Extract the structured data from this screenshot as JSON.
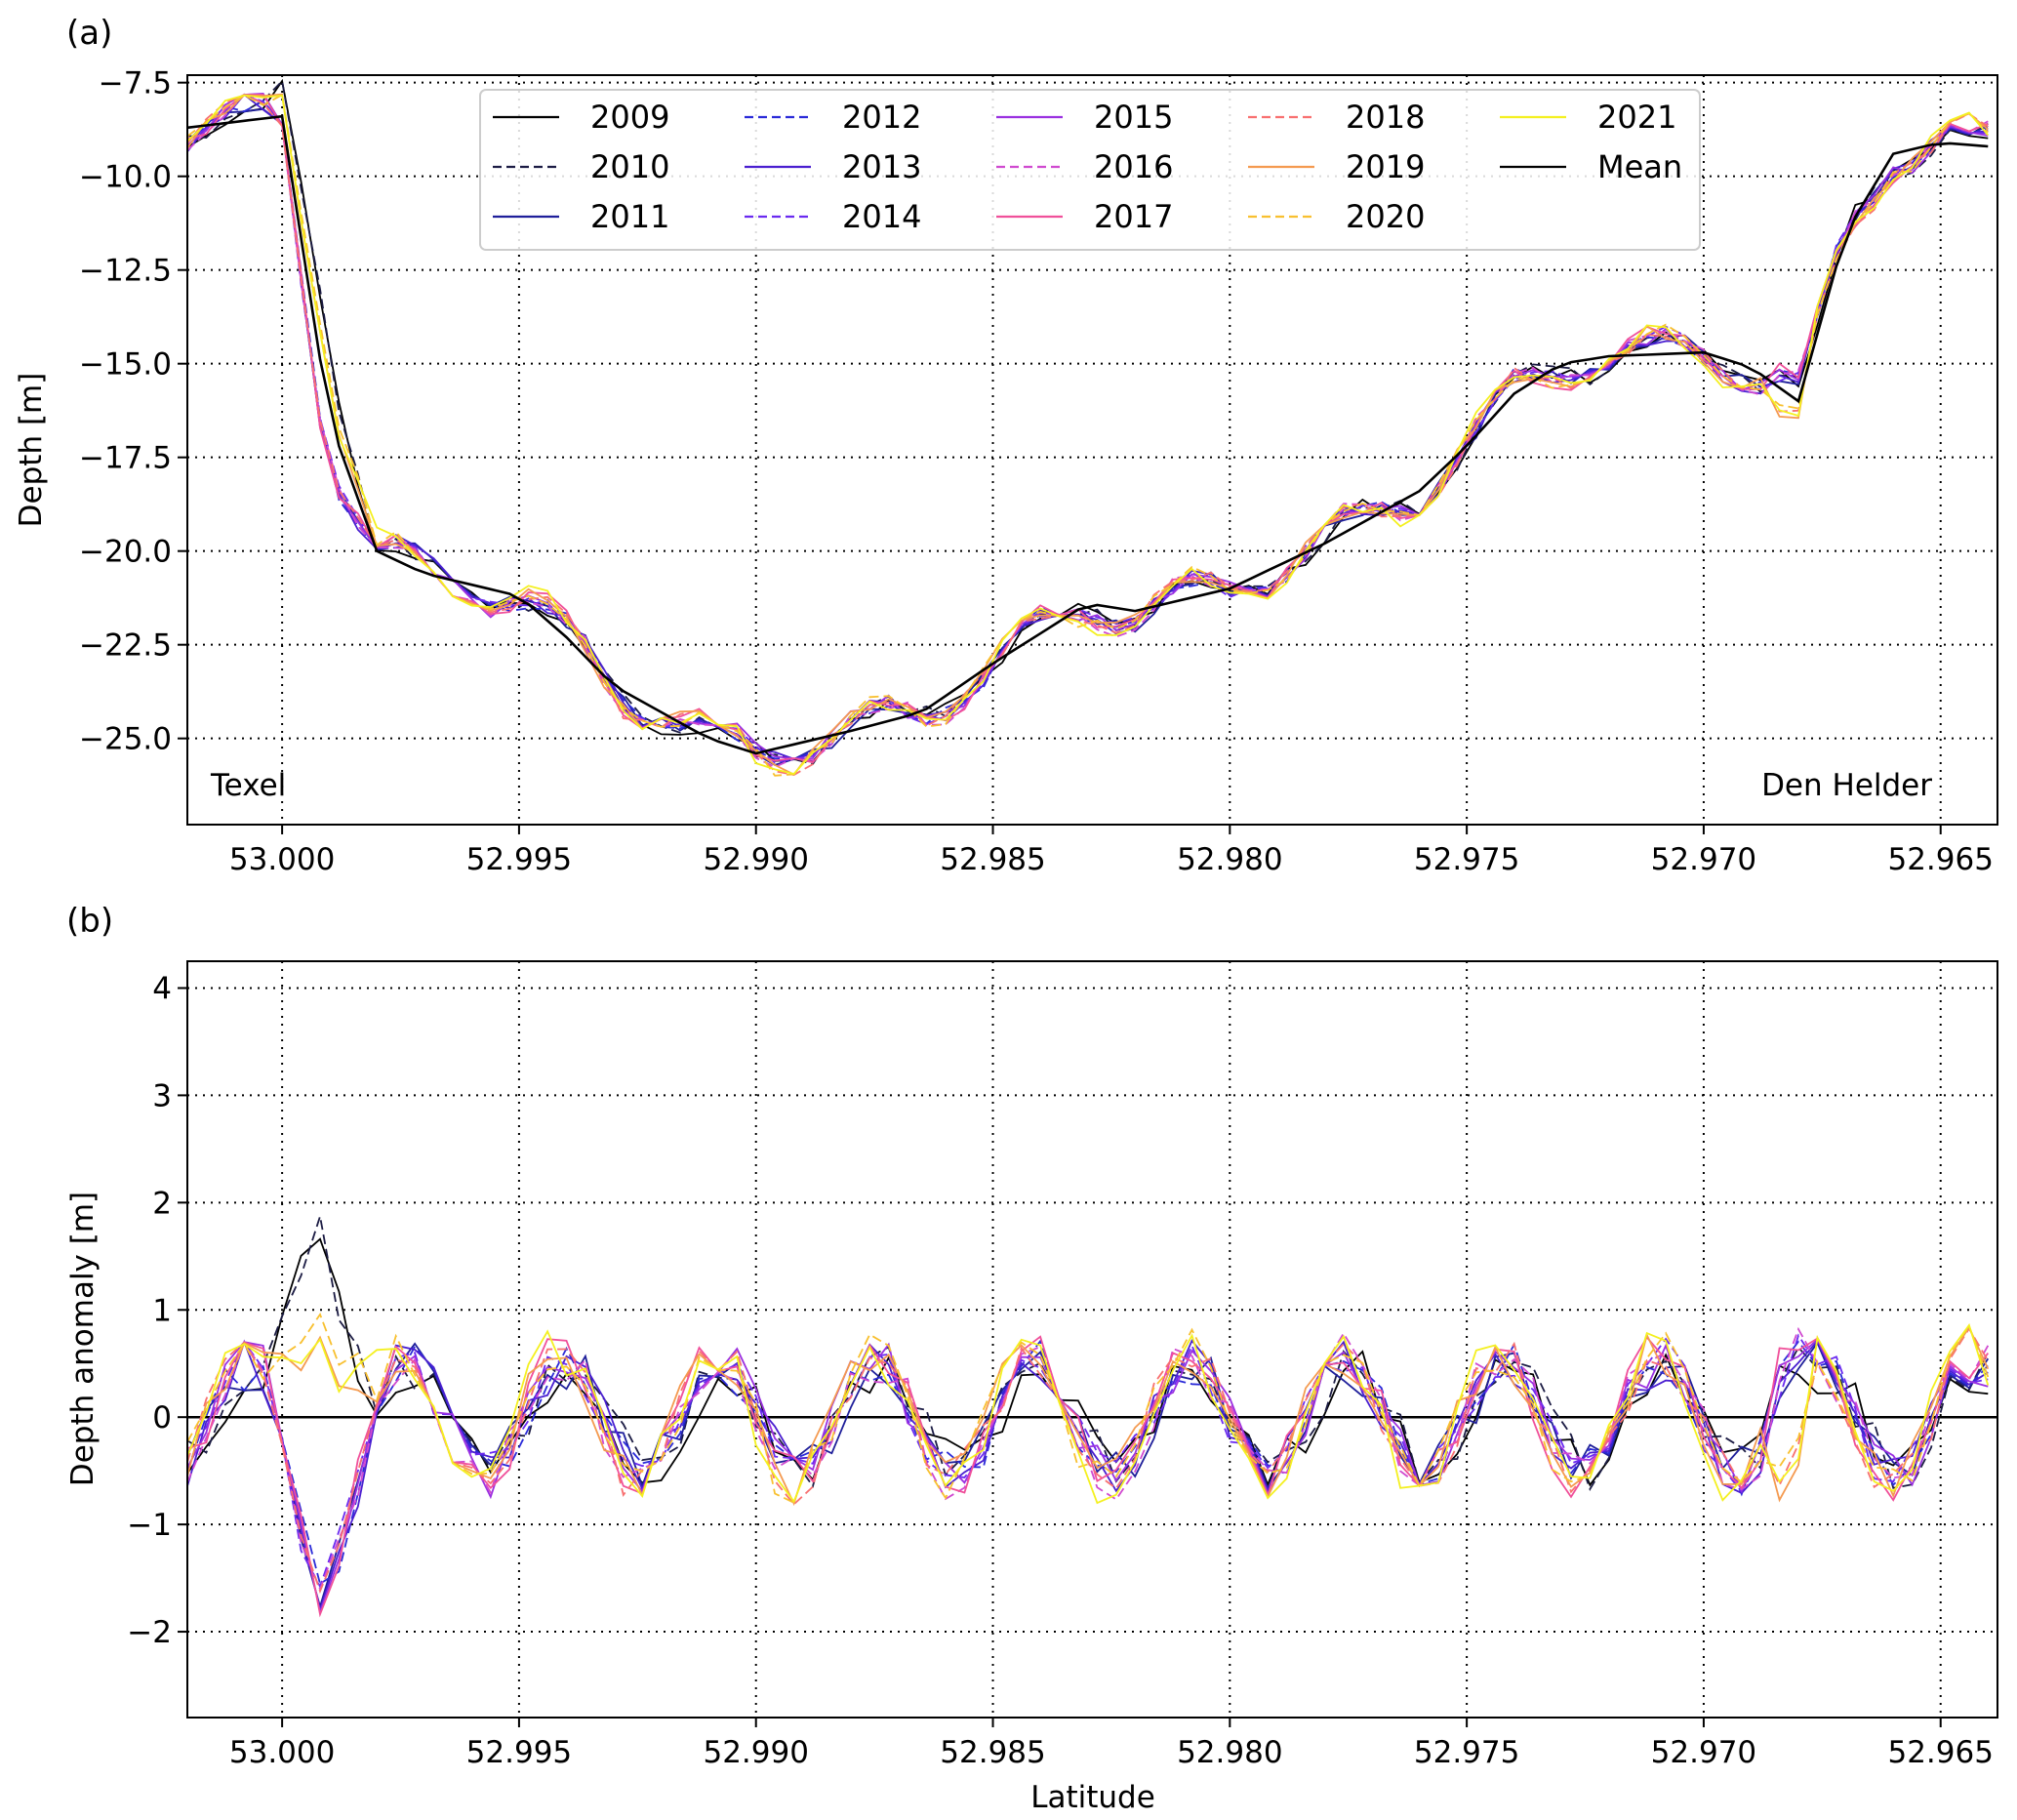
{
  "chart_data": [
    {
      "panel_label": "(a)",
      "type": "line",
      "xlabel": "",
      "ylabel": "Depth [m]",
      "xlim": [
        53.002,
        52.9638
      ],
      "ylim": [
        -27.3,
        -7.3
      ],
      "x_ticks": [
        "53.000",
        "52.995",
        "52.990",
        "52.985",
        "52.980",
        "52.975",
        "52.970",
        "52.965"
      ],
      "x_tick_values": [
        53.0,
        52.995,
        52.99,
        52.985,
        52.98,
        52.975,
        52.97,
        52.965
      ],
      "y_ticks": [
        "−7.5",
        "−10.0",
        "−12.5",
        "−15.0",
        "−17.5",
        "−20.0",
        "−22.5",
        "−25.0"
      ],
      "y_tick_values": [
        -7.5,
        -10.0,
        -12.5,
        -15.0,
        -17.5,
        -20.0,
        -22.5,
        -25.0
      ],
      "grid": true,
      "grid_style": "dotted",
      "legend_placement": "top-center",
      "annotations": [
        {
          "text": "Texel",
          "position": "bottom-left"
        },
        {
          "text": "Den Helder",
          "position": "bottom-right"
        }
      ],
      "mean_profile": {
        "x": [
          53.002,
          53.0,
          52.999,
          52.998,
          52.997,
          52.996,
          52.995,
          52.994,
          52.993,
          52.992,
          52.991,
          52.99,
          52.989,
          52.988,
          52.9865,
          52.985,
          52.984,
          52.983,
          52.982,
          52.98,
          52.978,
          52.976,
          52.975,
          52.974,
          52.973,
          52.972,
          52.97,
          52.969,
          52.968,
          52.967,
          52.966,
          52.965,
          52.964
        ],
        "y": [
          -8.7,
          -8.4,
          -16.5,
          -20.0,
          -20.6,
          -20.9,
          -21.2,
          -22.3,
          -23.6,
          -24.3,
          -25.0,
          -25.4,
          -25.1,
          -24.8,
          -24.3,
          -23.0,
          -22.2,
          -21.4,
          -21.6,
          -21.0,
          -19.8,
          -18.4,
          -17.2,
          -15.8,
          -15.0,
          -14.8,
          -14.7,
          -15.1,
          -16.0,
          -11.5,
          -9.4,
          -9.1,
          -9.2
        ]
      },
      "series": [
        {
          "name": "2009",
          "color": "#000000",
          "dash": "solid"
        },
        {
          "name": "2010",
          "color": "#1c1c44",
          "dash": "dashed"
        },
        {
          "name": "2011",
          "color": "#1f1f9a",
          "dash": "solid"
        },
        {
          "name": "2012",
          "color": "#2a2ad8",
          "dash": "dashed"
        },
        {
          "name": "2013",
          "color": "#4a1fd0",
          "dash": "solid"
        },
        {
          "name": "2014",
          "color": "#6a2af0",
          "dash": "dashed"
        },
        {
          "name": "2015",
          "color": "#9a30e0",
          "dash": "solid"
        },
        {
          "name": "2016",
          "color": "#d04ad0",
          "dash": "dashed"
        },
        {
          "name": "2017",
          "color": "#f0509a",
          "dash": "solid"
        },
        {
          "name": "2018",
          "color": "#f87070",
          "dash": "dashed"
        },
        {
          "name": "2019",
          "color": "#f49a50",
          "dash": "solid"
        },
        {
          "name": "2020",
          "color": "#f8c030",
          "dash": "dashed"
        },
        {
          "name": "2021",
          "color": "#f4f020",
          "dash": "solid"
        },
        {
          "name": "Mean",
          "color": "#000000",
          "dash": "solid"
        }
      ]
    },
    {
      "panel_label": "(b)",
      "type": "line",
      "xlabel": "Latitude",
      "ylabel": "Depth anomaly [m]",
      "xlim": [
        53.002,
        52.9638
      ],
      "ylim": [
        -2.8,
        4.25
      ],
      "x_ticks": [
        "53.000",
        "52.995",
        "52.990",
        "52.985",
        "52.980",
        "52.975",
        "52.970",
        "52.965"
      ],
      "x_tick_values": [
        53.0,
        52.995,
        52.99,
        52.985,
        52.98,
        52.975,
        52.97,
        52.965
      ],
      "y_ticks": [
        "−2",
        "−1",
        "0",
        "1",
        "2",
        "3",
        "4"
      ],
      "y_tick_values": [
        -2,
        -1,
        0,
        1,
        2,
        3,
        4
      ],
      "grid": true,
      "grid_style": "dotted",
      "zero_line": true,
      "series_same_as_panel_a": true
    }
  ]
}
